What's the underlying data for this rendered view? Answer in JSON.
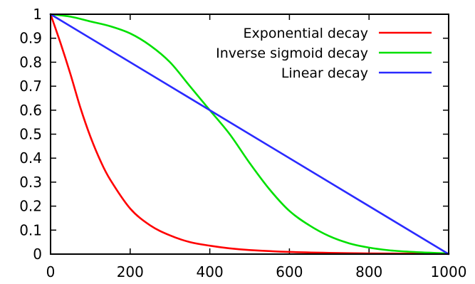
{
  "chart_data": {
    "type": "line",
    "title": "",
    "xlabel": "",
    "ylabel": "",
    "xlim": [
      0,
      1000
    ],
    "ylim": [
      0,
      1
    ],
    "x_ticks": [
      "0",
      "200",
      "400",
      "600",
      "800",
      "1000"
    ],
    "y_ticks": [
      "0",
      "0.1",
      "0.2",
      "0.3",
      "0.4",
      "0.5",
      "0.6",
      "0.7",
      "0.8",
      "0.9",
      "1"
    ],
    "x_tick_values": [
      0,
      200,
      400,
      600,
      800,
      1000
    ],
    "y_tick_values": [
      0,
      0.1,
      0.2,
      0.3,
      0.4,
      0.5,
      0.6,
      0.7,
      0.8,
      0.9,
      1
    ],
    "grid": false,
    "legend_position": "top-right",
    "series": [
      {
        "name": "Exponential decay",
        "color": "#ff0000",
        "x": [
          0,
          25,
          50,
          75,
          100,
          125,
          150,
          200,
          250,
          300,
          350,
          400,
          450,
          500,
          600,
          700,
          800,
          900,
          1000
        ],
        "y": [
          1.0,
          0.88,
          0.75,
          0.61,
          0.49,
          0.39,
          0.31,
          0.19,
          0.12,
          0.078,
          0.05,
          0.035,
          0.024,
          0.017,
          0.009,
          0.005,
          0.003,
          0.002,
          0.001
        ]
      },
      {
        "name": "Inverse sigmoid decay",
        "color": "#00e000",
        "x": [
          0,
          50,
          100,
          150,
          200,
          250,
          300,
          350,
          400,
          450,
          500,
          550,
          600,
          650,
          700,
          750,
          800,
          850,
          900,
          950,
          1000
        ],
        "y": [
          1.0,
          0.99,
          0.97,
          0.95,
          0.92,
          0.87,
          0.8,
          0.7,
          0.6,
          0.5,
          0.38,
          0.27,
          0.18,
          0.12,
          0.075,
          0.045,
          0.027,
          0.016,
          0.01,
          0.006,
          0.003
        ]
      },
      {
        "name": "Linear decay",
        "color": "#2a2aff",
        "x": [
          0,
          1000
        ],
        "y": [
          1.0,
          0.0
        ]
      }
    ]
  }
}
